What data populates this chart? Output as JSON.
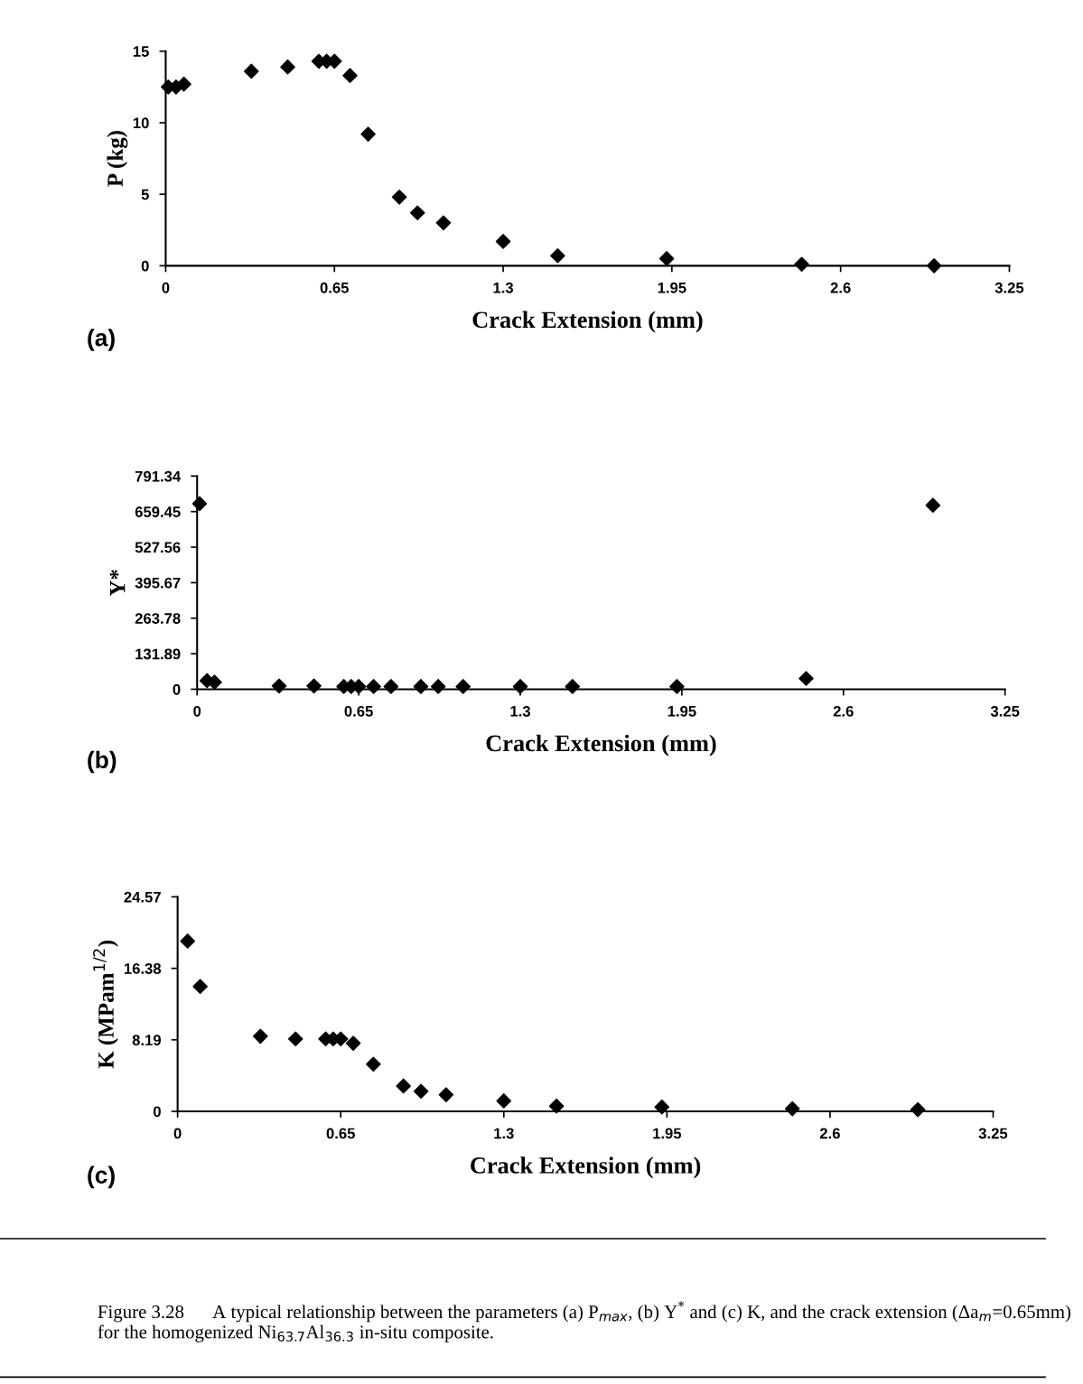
{
  "chart_data": [
    {
      "type": "scatter",
      "xlabel": "Crack Extension (mm)",
      "ylabel": "P (kg)",
      "marker": "diamond",
      "grid": false,
      "legend": false,
      "x": [
        0.01,
        0.04,
        0.07,
        0.33,
        0.47,
        0.59,
        0.62,
        0.65,
        0.71,
        0.78,
        0.9,
        0.97,
        1.07,
        1.3,
        1.51,
        1.93,
        2.45,
        2.96
      ],
      "series": [
        {
          "color": "#000000",
          "values": [
            12.5,
            12.5,
            12.7,
            13.6,
            13.9,
            14.3,
            14.3,
            14.3,
            13.3,
            9.2,
            4.8,
            3.7,
            3.0,
            1.7,
            0.7,
            0.5,
            0.1,
            0.0
          ]
        }
      ],
      "xlim": [
        0,
        3.25
      ],
      "xticks": [
        0,
        0.65,
        1.3,
        1.95,
        2.6,
        3.25
      ],
      "ylim": [
        0,
        15
      ],
      "yticks": [
        0,
        5,
        10,
        15
      ],
      "annotations": [
        "(a)"
      ]
    },
    {
      "type": "scatter",
      "xlabel": "Crack Extension (mm)",
      "ylabel": "Y*",
      "marker": "diamond",
      "grid": false,
      "legend": false,
      "x": [
        0.01,
        0.04,
        0.07,
        0.33,
        0.47,
        0.59,
        0.62,
        0.65,
        0.71,
        0.78,
        0.9,
        0.97,
        1.07,
        1.3,
        1.51,
        1.93,
        2.45,
        2.96
      ],
      "series": [
        {
          "color": "#000000",
          "values": [
            689,
            32,
            26,
            12,
            12,
            10,
            10,
            10,
            10,
            10,
            10,
            10,
            10,
            10,
            10,
            10,
            40,
            683
          ]
        }
      ],
      "xlim": [
        0,
        3.25
      ],
      "xticks": [
        0,
        0.65,
        1.3,
        1.95,
        2.6,
        3.25
      ],
      "ylim": [
        0,
        791.34
      ],
      "yticks": [
        0,
        131.89,
        263.78,
        395.67,
        527.56,
        659.45,
        791.34
      ],
      "annotations": [
        "(b)"
      ]
    },
    {
      "type": "scatter",
      "xlabel": "Crack Extension (mm)",
      "ylabel": "K (MPam$^{1/2}$)",
      "marker": "diamond",
      "grid": false,
      "legend": false,
      "x": [
        0.04,
        0.09,
        0.33,
        0.47,
        0.59,
        0.62,
        0.65,
        0.7,
        0.78,
        0.9,
        0.97,
        1.07,
        1.3,
        1.51,
        1.93,
        2.45,
        2.95
      ],
      "series": [
        {
          "color": "#000000",
          "values": [
            19.5,
            14.3,
            8.6,
            8.3,
            8.3,
            8.3,
            8.3,
            7.8,
            5.4,
            2.9,
            2.3,
            1.9,
            1.2,
            0.6,
            0.5,
            0.3,
            0.2
          ]
        }
      ],
      "xlim": [
        0,
        3.25
      ],
      "xticks": [
        0,
        0.65,
        1.3,
        1.95,
        2.6,
        3.25
      ],
      "ylim": [
        0,
        24.57
      ],
      "yticks": [
        0,
        8.19,
        16.38,
        24.57
      ],
      "annotations": [
        "(c)",
        "Figure 3.28      A typical relationship between the parameters (a) P$_{max}$, (b) Y$^{*}$ and (c) K, and the crack extension (Δa$_{m}$=0.65mm) for the homogenized Ni$_{63.7}$Al$_{36.3}$ in-situ composite."
      ]
    }
  ]
}
